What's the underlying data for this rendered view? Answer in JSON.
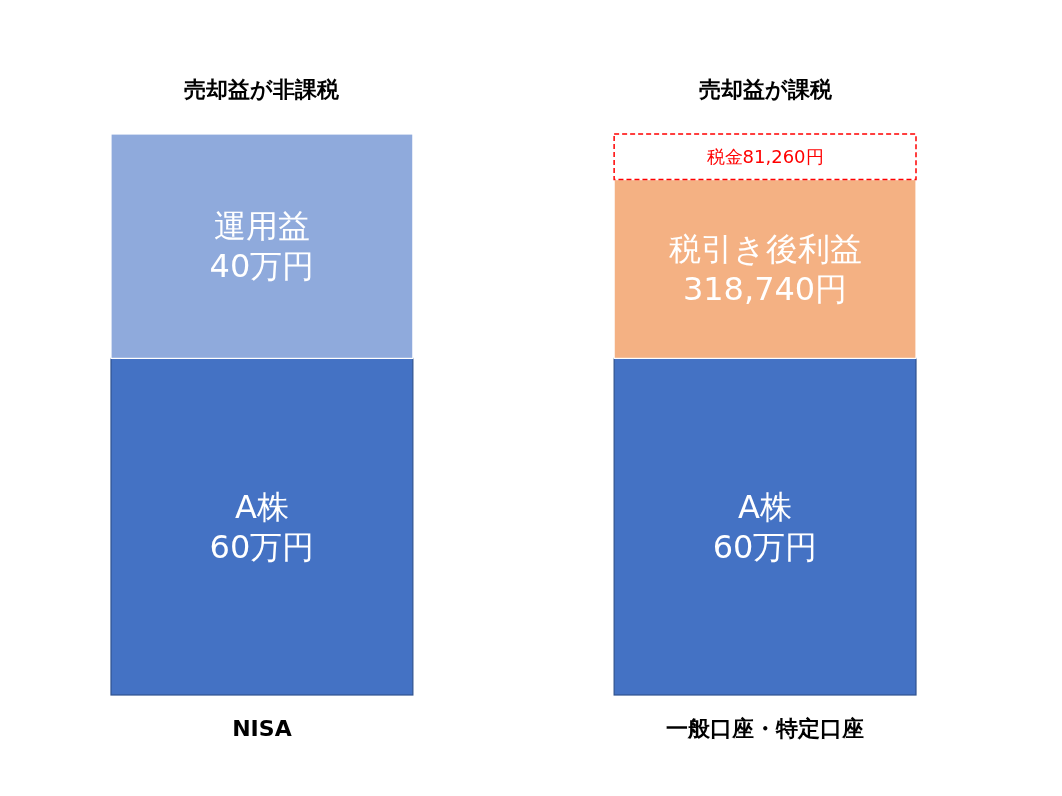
{
  "chart_data": {
    "type": "bar",
    "stacked": true,
    "categories": [
      "NISA",
      "一般口座・特定口座"
    ],
    "series": [
      {
        "colors": [
          "#4472c4",
          "#4472c4"
        ],
        "values": [
          600000,
          600000
        ],
        "value_labels": [
          "A株\n60万円",
          "A株\n60万円"
        ]
      },
      {
        "colors": [
          "#8faadc",
          "#f4b183"
        ],
        "values": [
          400000,
          318740
        ],
        "value_labels": [
          "運用益\n40万円",
          "税引き後利益\n318,740円"
        ]
      },
      {
        "color": "#ff0000",
        "line_style": "dashed",
        "values": [
          null,
          81260
        ],
        "value_labels": [
          null,
          "税金81,260円"
        ]
      }
    ],
    "annotations": [
      {
        "text": "売却益が非課税",
        "x": "NISA",
        "y": 1000000
      },
      {
        "text": "売却益が課税",
        "x": "一般口座・特定口座",
        "y": 1000000
      }
    ]
  }
}
